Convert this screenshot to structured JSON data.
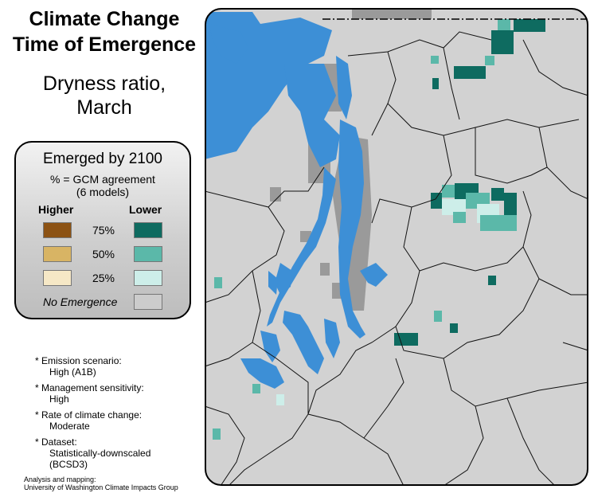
{
  "title": [
    "Climate Change",
    "Time of Emergence"
  ],
  "subtitle": [
    "Dryness ratio,",
    "March"
  ],
  "legend": {
    "heading": "Emerged by 2100",
    "sub": [
      "% = GCM agreement",
      "(6 models)"
    ],
    "higher_label": "Higher",
    "lower_label": "Lower",
    "rows": [
      {
        "pct": "75%",
        "higher_color": "#8c5213",
        "lower_color": "#0e6b60"
      },
      {
        "pct": "50%",
        "higher_color": "#d8b464",
        "lower_color": "#5bb8a9"
      },
      {
        "pct": "25%",
        "higher_color": "#f6e8c6",
        "lower_color": "#cdeee9"
      }
    ],
    "no_emergence_label": "No Emergence",
    "no_emergence_color": "#cccccc"
  },
  "notes": [
    {
      "label": "* Emission scenario:",
      "value": "High (A1B)"
    },
    {
      "label": "* Management sensitivity:",
      "value": "High"
    },
    {
      "label": "* Rate of climate change:",
      "value": "Moderate"
    },
    {
      "label": "* Dataset:",
      "value": "Statistically-downscaled (BCSD3)"
    }
  ],
  "credit": [
    "Analysis and mapping:",
    "University of Washington Climate Impacts Group"
  ],
  "map_colors": {
    "land": "#d2d2d2",
    "water": "#3d8fd6",
    "dark_land": "#9a9a9a",
    "border": "#000000"
  }
}
